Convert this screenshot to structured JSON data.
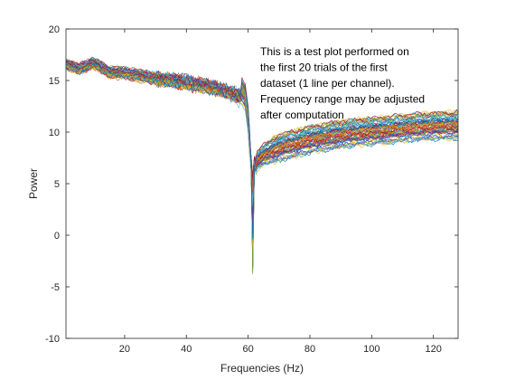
{
  "chart_data": {
    "type": "line",
    "title": "",
    "xlabel": "Frequencies (Hz)",
    "ylabel": "Power",
    "xlim": [
      1,
      128
    ],
    "ylim": [
      -10,
      20
    ],
    "x_ticks": [
      20,
      40,
      60,
      80,
      100,
      120
    ],
    "y_ticks": [
      -10,
      -5,
      0,
      5,
      10,
      15,
      20
    ],
    "grid": false,
    "legend": "none",
    "annotation": [
      "This is a test plot performed on",
      "the first 20 trials of the first",
      "dataset (1 line per channel).",
      "Frequency range may be adjusted",
      "after computation"
    ],
    "series_profile": {
      "frequencies": [
        1,
        5,
        10,
        15,
        20,
        30,
        40,
        50,
        55,
        58,
        59,
        60,
        61,
        61.5,
        62,
        63,
        65,
        70,
        80,
        90,
        100,
        110,
        120,
        128
      ],
      "mean_power": [
        16.6,
        16.1,
        16.7,
        15.8,
        15.7,
        15.2,
        14.8,
        14.2,
        13.7,
        13.3,
        12.8,
        10.5,
        6.0,
        3.5,
        6.5,
        7.3,
        7.8,
        8.5,
        9.3,
        9.8,
        10.1,
        10.4,
        10.6,
        10.7
      ],
      "channel_count": 64
    },
    "colors": [
      "#0072BD",
      "#D95319",
      "#EDB120",
      "#7E2F8E",
      "#77AC30",
      "#4DBEEE",
      "#A2142F"
    ]
  }
}
